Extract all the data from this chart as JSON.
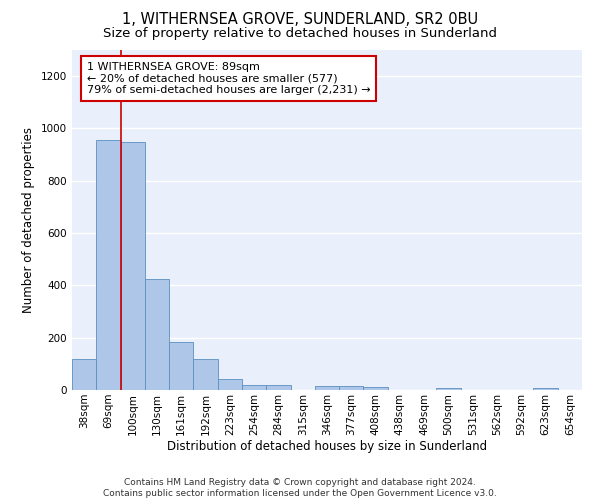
{
  "title": "1, WITHERNSEA GROVE, SUNDERLAND, SR2 0BU",
  "subtitle": "Size of property relative to detached houses in Sunderland",
  "xlabel": "Distribution of detached houses by size in Sunderland",
  "ylabel": "Number of detached properties",
  "categories": [
    "38sqm",
    "69sqm",
    "100sqm",
    "130sqm",
    "161sqm",
    "192sqm",
    "223sqm",
    "254sqm",
    "284sqm",
    "315sqm",
    "346sqm",
    "377sqm",
    "408sqm",
    "438sqm",
    "469sqm",
    "500sqm",
    "531sqm",
    "562sqm",
    "592sqm",
    "623sqm",
    "654sqm"
  ],
  "values": [
    120,
    955,
    950,
    425,
    185,
    120,
    42,
    20,
    20,
    0,
    15,
    15,
    10,
    0,
    0,
    8,
    0,
    0,
    0,
    8,
    0
  ],
  "bar_color": "#aec6e8",
  "bar_edge_color": "#5a8fc0",
  "property_line_x": 1.5,
  "annotation_text": "1 WITHERNSEA GROVE: 89sqm\n← 20% of detached houses are smaller (577)\n79% of semi-detached houses are larger (2,231) →",
  "annotation_box_color": "#ffffff",
  "annotation_box_edge_color": "#cc0000",
  "ylim": [
    0,
    1300
  ],
  "yticks": [
    0,
    200,
    400,
    600,
    800,
    1000,
    1200
  ],
  "background_color": "#eaf0fb",
  "footer_line1": "Contains HM Land Registry data © Crown copyright and database right 2024.",
  "footer_line2": "Contains public sector information licensed under the Open Government Licence v3.0.",
  "grid_color": "#ffffff",
  "title_fontsize": 10.5,
  "subtitle_fontsize": 9.5,
  "axis_label_fontsize": 8.5,
  "tick_fontsize": 7.5,
  "annotation_fontsize": 8,
  "footer_fontsize": 6.5
}
